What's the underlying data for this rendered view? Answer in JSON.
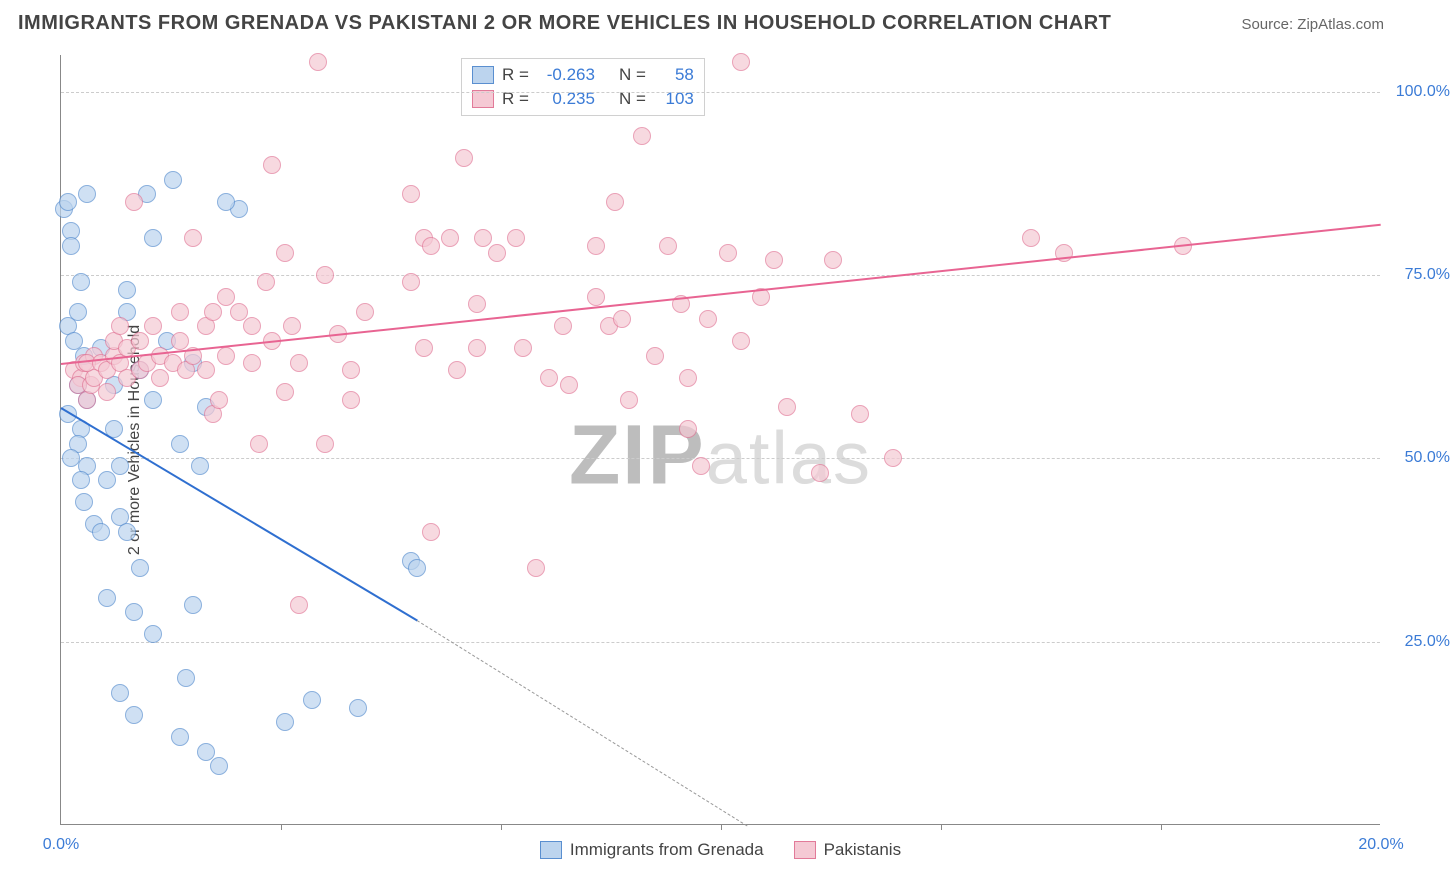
{
  "title": "IMMIGRANTS FROM GRENADA VS PAKISTANI 2 OR MORE VEHICLES IN HOUSEHOLD CORRELATION CHART",
  "source_label": "Source: ZipAtlas.com",
  "y_axis_label": "2 or more Vehicles in Household",
  "watermark": {
    "big": "ZIP",
    "small": "atlas"
  },
  "chart": {
    "type": "scatter",
    "xlim": [
      0,
      20
    ],
    "ylim": [
      0,
      105
    ],
    "x_ticks": [
      0,
      3.33,
      6.67,
      10,
      13.33,
      16.67,
      20
    ],
    "x_tick_labels": [
      "0.0%",
      "",
      "",
      "",
      "",
      "",
      "20.0%"
    ],
    "y_ticks": [
      25,
      50,
      75,
      100
    ],
    "y_tick_labels": [
      "25.0%",
      "50.0%",
      "75.0%",
      "100.0%"
    ],
    "grid_color": "#cccccc",
    "background_color": "#ffffff",
    "axis_color": "#888888",
    "tick_label_color": "#3b7bd6",
    "tick_label_fontsize": 16,
    "title_fontsize": 20,
    "marker_radius": 9,
    "marker_opacity": 0.5,
    "series": [
      {
        "name": "Immigrants from Grenada",
        "marker_fill": "#bcd4ee",
        "marker_stroke": "#5a8fd0",
        "trend_color": "#2f6fd0",
        "R": "-0.263",
        "N": "58",
        "trend": {
          "x1": 0,
          "y1": 57,
          "x2": 5.4,
          "y2": 28
        },
        "trend_ext": {
          "x1": 5.4,
          "y1": 28,
          "x2": 10.4,
          "y2": 0
        },
        "points": [
          [
            0.05,
            84
          ],
          [
            0.1,
            85
          ],
          [
            0.15,
            81
          ],
          [
            0.15,
            79
          ],
          [
            0.3,
            74
          ],
          [
            0.25,
            70
          ],
          [
            0.1,
            68
          ],
          [
            0.2,
            66
          ],
          [
            0.35,
            64
          ],
          [
            0.25,
            60
          ],
          [
            0.4,
            58
          ],
          [
            0.1,
            56
          ],
          [
            0.3,
            54
          ],
          [
            0.25,
            52
          ],
          [
            0.15,
            50
          ],
          [
            0.4,
            49
          ],
          [
            0.8,
            54
          ],
          [
            0.9,
            49
          ],
          [
            0.35,
            44
          ],
          [
            0.5,
            41
          ],
          [
            0.6,
            40
          ],
          [
            0.9,
            42
          ],
          [
            1.0,
            40
          ],
          [
            1.2,
            35
          ],
          [
            0.7,
            31
          ],
          [
            1.1,
            29
          ],
          [
            1.4,
            26
          ],
          [
            1.9,
            20
          ],
          [
            2.0,
            30
          ],
          [
            0.9,
            18
          ],
          [
            1.1,
            15
          ],
          [
            1.8,
            12
          ],
          [
            2.2,
            10
          ],
          [
            2.4,
            8
          ],
          [
            3.4,
            14
          ],
          [
            3.8,
            17
          ],
          [
            4.5,
            16
          ],
          [
            0.4,
            86
          ],
          [
            1.7,
            88
          ],
          [
            1.3,
            86
          ],
          [
            2.7,
            84
          ],
          [
            2.5,
            85
          ],
          [
            1.4,
            80
          ],
          [
            1.0,
            73
          ],
          [
            1.0,
            70
          ],
          [
            1.6,
            66
          ],
          [
            1.2,
            62
          ],
          [
            1.4,
            58
          ],
          [
            2.2,
            57
          ],
          [
            1.8,
            52
          ],
          [
            2.1,
            49
          ],
          [
            2.0,
            63
          ],
          [
            0.7,
            47
          ],
          [
            0.3,
            47
          ],
          [
            0.6,
            65
          ],
          [
            0.8,
            60
          ],
          [
            5.3,
            36
          ],
          [
            5.4,
            35
          ]
        ]
      },
      {
        "name": "Pakistanis",
        "marker_fill": "#f5c9d4",
        "marker_stroke": "#e27a99",
        "trend_color": "#e86492",
        "R": "0.235",
        "N": "103",
        "trend": {
          "x1": 0,
          "y1": 63,
          "x2": 20,
          "y2": 82
        },
        "points": [
          [
            0.2,
            62
          ],
          [
            0.3,
            61
          ],
          [
            0.35,
            63
          ],
          [
            0.25,
            60
          ],
          [
            0.4,
            58
          ],
          [
            0.45,
            60
          ],
          [
            0.5,
            61
          ],
          [
            0.5,
            64
          ],
          [
            0.4,
            63
          ],
          [
            0.6,
            63
          ],
          [
            0.7,
            62
          ],
          [
            0.7,
            59
          ],
          [
            0.8,
            64
          ],
          [
            0.8,
            66
          ],
          [
            0.9,
            63
          ],
          [
            0.9,
            68
          ],
          [
            1.0,
            61
          ],
          [
            1.0,
            65
          ],
          [
            1.2,
            62
          ],
          [
            1.2,
            66
          ],
          [
            1.3,
            63
          ],
          [
            1.4,
            68
          ],
          [
            1.5,
            61
          ],
          [
            1.5,
            64
          ],
          [
            1.7,
            63
          ],
          [
            1.8,
            66
          ],
          [
            1.8,
            70
          ],
          [
            1.9,
            62
          ],
          [
            2.0,
            64
          ],
          [
            2.2,
            68
          ],
          [
            2.2,
            62
          ],
          [
            2.3,
            56
          ],
          [
            2.3,
            70
          ],
          [
            2.4,
            58
          ],
          [
            2.5,
            64
          ],
          [
            2.5,
            72
          ],
          [
            2.7,
            70
          ],
          [
            2.9,
            63
          ],
          [
            2.9,
            68
          ],
          [
            3.0,
            52
          ],
          [
            3.1,
            74
          ],
          [
            3.2,
            90
          ],
          [
            3.2,
            66
          ],
          [
            3.4,
            59
          ],
          [
            3.4,
            78
          ],
          [
            3.5,
            68
          ],
          [
            3.6,
            30
          ],
          [
            3.6,
            63
          ],
          [
            3.9,
            104
          ],
          [
            4.0,
            52
          ],
          [
            4.0,
            75
          ],
          [
            4.2,
            67
          ],
          [
            4.4,
            62
          ],
          [
            4.4,
            58
          ],
          [
            4.6,
            70
          ],
          [
            5.3,
            86
          ],
          [
            5.3,
            74
          ],
          [
            5.5,
            65
          ],
          [
            5.5,
            80
          ],
          [
            5.6,
            40
          ],
          [
            5.6,
            79
          ],
          [
            5.9,
            80
          ],
          [
            6.0,
            62
          ],
          [
            6.1,
            91
          ],
          [
            6.3,
            65
          ],
          [
            6.3,
            71
          ],
          [
            6.4,
            80
          ],
          [
            6.6,
            78
          ],
          [
            6.9,
            80
          ],
          [
            7.0,
            65
          ],
          [
            7.2,
            35
          ],
          [
            7.4,
            61
          ],
          [
            7.6,
            68
          ],
          [
            7.7,
            60
          ],
          [
            8.1,
            79
          ],
          [
            8.1,
            72
          ],
          [
            8.3,
            68
          ],
          [
            8.4,
            85
          ],
          [
            8.5,
            69
          ],
          [
            8.6,
            58
          ],
          [
            8.8,
            94
          ],
          [
            9.0,
            64
          ],
          [
            9.2,
            79
          ],
          [
            9.4,
            71
          ],
          [
            9.5,
            54
          ],
          [
            9.5,
            61
          ],
          [
            9.7,
            49
          ],
          [
            9.8,
            69
          ],
          [
            10.1,
            78
          ],
          [
            10.3,
            66
          ],
          [
            10.3,
            104
          ],
          [
            10.6,
            72
          ],
          [
            10.8,
            77
          ],
          [
            11.0,
            57
          ],
          [
            11.5,
            48
          ],
          [
            11.7,
            77
          ],
          [
            12.1,
            56
          ],
          [
            12.6,
            50
          ],
          [
            14.7,
            80
          ],
          [
            15.2,
            78
          ],
          [
            17.0,
            79
          ],
          [
            1.1,
            85
          ],
          [
            2.0,
            80
          ]
        ]
      }
    ]
  },
  "legend_top": [
    {
      "swatch_fill": "#bcd4ee",
      "swatch_stroke": "#5a8fd0",
      "r_label": "R =",
      "r_value": "-0.263",
      "n_label": "N =",
      "n_value": "58"
    },
    {
      "swatch_fill": "#f5c9d4",
      "swatch_stroke": "#e27a99",
      "r_label": "R =",
      "r_value": "0.235",
      "n_label": "N =",
      "n_value": "103"
    }
  ],
  "legend_bottom": [
    {
      "swatch_fill": "#bcd4ee",
      "swatch_stroke": "#5a8fd0",
      "label": "Immigrants from Grenada"
    },
    {
      "swatch_fill": "#f5c9d4",
      "swatch_stroke": "#e27a99",
      "label": "Pakistanis"
    }
  ]
}
